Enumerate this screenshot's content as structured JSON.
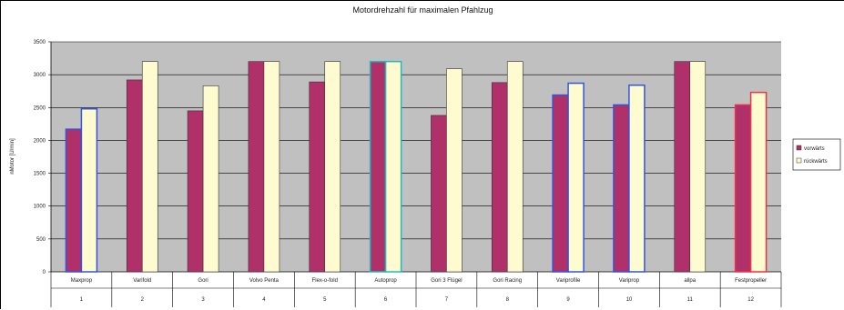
{
  "chart_data": {
    "type": "bar",
    "title": "Motordrehzahl für maximalen Pfahlzug",
    "ylabel": "nMotor [U/min]",
    "xlabel": "",
    "ylim": [
      0,
      3500
    ],
    "yticks": [
      0,
      500,
      1000,
      1500,
      2000,
      2500,
      3000,
      3500
    ],
    "grid": true,
    "legend_position": "right",
    "categories": [
      "Maxprop",
      "Varifold",
      "Gori",
      "Volvo Penta",
      "Flex-o-fold",
      "Autoprop",
      "Gori 3 Flügel",
      "Gori Racing",
      "Variprofile",
      "Variprop",
      "allpa",
      "Festpropeller"
    ],
    "category_numbers": [
      "1",
      "2",
      "3",
      "4",
      "5",
      "6",
      "7",
      "8",
      "9",
      "10",
      "11",
      "12"
    ],
    "series": [
      {
        "name": "vorwärts",
        "color": "#b0306a",
        "values": [
          2170,
          2920,
          2450,
          3200,
          2890,
          3200,
          2380,
          2880,
          2690,
          2540,
          3200,
          2540
        ]
      },
      {
        "name": "rückwärts",
        "color": "#fffbd0",
        "values": [
          2480,
          3200,
          2830,
          3200,
          3200,
          3200,
          3090,
          3200,
          2870,
          2840,
          3200,
          2730
        ]
      }
    ],
    "bar_outline_colors": [
      "#3355dd",
      null,
      null,
      null,
      null,
      "#22bbbb",
      null,
      null,
      "#3355dd",
      "#3355dd",
      null,
      "#ee3344"
    ]
  }
}
